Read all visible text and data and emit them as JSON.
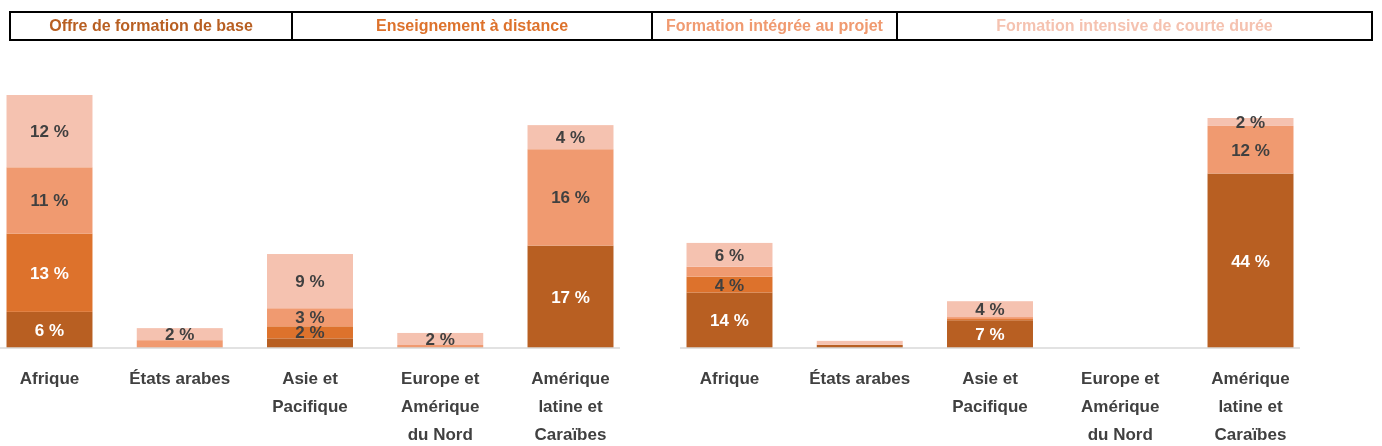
{
  "chart_data": [
    {
      "type": "bar",
      "stacked": true,
      "legend": "top",
      "categories": [
        "Afrique",
        "États arabes",
        "Asie et Pacifique",
        "Europe et Amérique du Nord",
        "Amérique latine et Caraïbes"
      ],
      "series": [
        {
          "name": "Offre de formation de base",
          "color": "#b85f22",
          "values": [
            6,
            0,
            1.6,
            0,
            17
          ],
          "value_labels": [
            "6 %",
            null,
            null,
            null,
            "17 %"
          ]
        },
        {
          "name": "Enseignement à distance",
          "color": "#dd722c",
          "values": [
            13,
            0,
            2,
            0,
            0
          ],
          "value_labels": [
            "13 %",
            null,
            "2 %",
            null,
            null
          ]
        },
        {
          "name": "Formation intégrée au projet",
          "color": "#f09a70",
          "values": [
            11,
            1.3,
            3,
            0.5,
            16
          ],
          "value_labels": [
            "11 %",
            null,
            "3 %",
            null,
            "16 %"
          ]
        },
        {
          "name": "Formation intensive de courte durée",
          "color": "#f5c2b0",
          "values": [
            12,
            2,
            9,
            2,
            4
          ],
          "value_labels": [
            "12 %",
            "2 %",
            "9 %",
            "2 %",
            "4 %"
          ]
        }
      ]
    },
    {
      "type": "bar",
      "stacked": true,
      "legend": false,
      "categories": [
        "Afrique",
        "États arabes",
        "Asie et Pacifique",
        "Europe et Amérique du Nord",
        "Amérique latine et Caraïbes"
      ],
      "series": [
        {
          "color": "#b85f22",
          "values": [
            14,
            0.8,
            7,
            0,
            44
          ],
          "value_labels": [
            "14 %",
            null,
            "7 %",
            null,
            "44 %"
          ]
        },
        {
          "color": "#dd722c",
          "values": [
            4,
            0,
            0.3,
            0,
            0
          ],
          "value_labels": [
            "4 %",
            null,
            null,
            null,
            null
          ]
        },
        {
          "color": "#f09a70",
          "values": [
            2.5,
            0,
            0.5,
            0,
            12
          ],
          "value_labels": [
            null,
            null,
            null,
            null,
            "12 %"
          ]
        },
        {
          "color": "#f5c2b0",
          "values": [
            6,
            1,
            4,
            0,
            2
          ],
          "value_labels": [
            "6 %",
            null,
            "4 %",
            null,
            "2 %"
          ]
        }
      ]
    }
  ]
}
